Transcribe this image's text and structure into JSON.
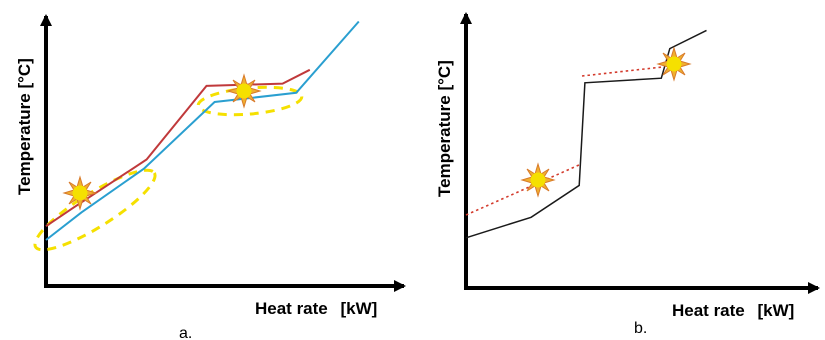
{
  "chart_data": [
    {
      "type": "line",
      "panel_label": "a.",
      "xlabel": "Heat rate",
      "xunit": "[kW]",
      "ylabel": "Temperature [°C]",
      "series": [
        {
          "color": "#c0393b",
          "points": [
            [
              0,
              0.26
            ],
            [
              0.1,
              0.34
            ],
            [
              0.37,
              0.55
            ],
            [
              0.59,
              0.87
            ],
            [
              0.87,
              0.88
            ],
            [
              0.97,
              0.94
            ]
          ]
        },
        {
          "color": "#2a9fd0",
          "points": [
            [
              0,
              0.2
            ],
            [
              0.13,
              0.32
            ],
            [
              0.36,
              0.51
            ],
            [
              0.62,
              0.8
            ],
            [
              0.92,
              0.84
            ],
            [
              1.15,
              1.15
            ]
          ]
        }
      ],
      "highlights": [
        {
          "shape": "dashed-ellipse",
          "color": "#f5e000"
        },
        {
          "shape": "dashed-ellipse",
          "color": "#f5e000"
        }
      ],
      "icons": [
        "sun-icon",
        "sun-icon"
      ],
      "colors": {
        "axis": "#000000",
        "highlight": "#f5e000",
        "sun": "#f5e000",
        "sun_rays": "#d87a2a"
      }
    },
    {
      "type": "line",
      "panel_label": "b.",
      "xlabel": "Heat rate",
      "xunit": "[kW]",
      "ylabel": "Temperature [°C]",
      "series": [
        {
          "color": "#1a1a1a",
          "style": "solid",
          "points": [
            [
              0,
              0.22
            ],
            [
              0.23,
              0.31
            ],
            [
              0.4,
              0.45
            ],
            [
              0.42,
              0.9
            ],
            [
              0.69,
              0.92
            ],
            [
              0.72,
              1.05
            ],
            [
              0.85,
              1.13
            ]
          ]
        },
        {
          "color": "#d33a2c",
          "style": "dotted",
          "points": [
            [
              0,
              0.32
            ],
            [
              0.4,
              0.54
            ]
          ]
        },
        {
          "color": "#d33a2c",
          "style": "dotted",
          "points": [
            [
              0.41,
              0.93
            ],
            [
              0.7,
              0.97
            ]
          ]
        }
      ],
      "icons": [
        "sun-icon",
        "sun-icon"
      ],
      "colors": {
        "axis": "#000000",
        "sun": "#f5e000",
        "sun_rays": "#d87a2a"
      }
    }
  ]
}
